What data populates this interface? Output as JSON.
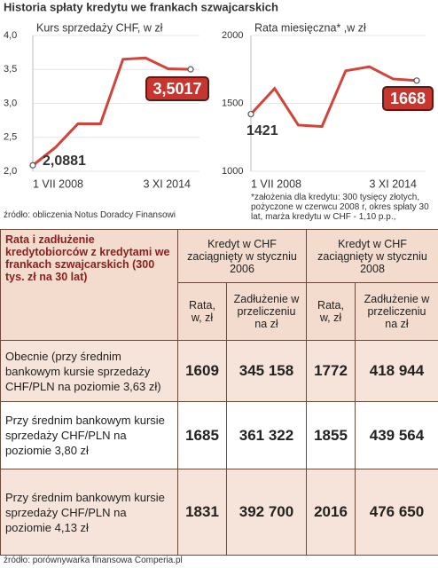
{
  "title": "Historia spłaty kredytu we frankach szwajcarskich",
  "chart_data": [
    {
      "type": "line",
      "title": "Kurs sprzedaży CHF, w zł",
      "categories": [
        "1 VII 2008",
        null,
        null,
        null,
        null,
        null,
        null,
        "3 XI 2014"
      ],
      "series": [
        {
          "name": "Kurs sprzedaży CHF",
          "color": "#d2433a",
          "values": [
            2.0881,
            2.35,
            2.7,
            2.7,
            3.65,
            3.67,
            3.51,
            3.5017
          ],
          "value_labels": [
            "2,0881",
            null,
            null,
            null,
            null,
            null,
            null,
            "3,5017"
          ]
        }
      ],
      "ylim": [
        2.0,
        4.0
      ],
      "yticks": [
        {
          "value": 2.0,
          "label": "2,0"
        },
        {
          "value": 2.5,
          "label": "2,5"
        },
        {
          "value": 3.0,
          "label": "3,0"
        },
        {
          "value": 3.5,
          "label": "3,5"
        },
        {
          "value": 4.0,
          "label": "4,0"
        }
      ]
    },
    {
      "type": "line",
      "title": "Rata miesięczna* ,w zł",
      "categories": [
        "1 VII 2008",
        null,
        null,
        null,
        null,
        null,
        null,
        "3 XI 2014"
      ],
      "series": [
        {
          "name": "Rata miesięczna",
          "color": "#d2433a",
          "values": [
            1421,
            1610,
            1340,
            1330,
            1740,
            1770,
            1680,
            1668
          ]
        }
      ],
      "ylim": [
        1000,
        2000
      ],
      "yticks": [
        1000,
        1500,
        2000
      ]
    }
  ],
  "footnote": "*założenia dla kredytu: 300 tysięcy złotych, pożyczone w czerwcu 2008 r, okres spłaty 30 lat,   marża kredytu w CHF - 1,10 p.p.,",
  "source_charts": "źródło: obliczenia Notus Doradcy Finansowi",
  "table": {
    "corner": "Rata i zadłużenie kredytobiorców z kredytami we frankach szwajcarskich (300 tys. zł na 30 lat)",
    "groups": [
      "Kredyt w CHF zaciągnięty w styczniu 2006",
      "Kredyt w CHF zaciągnięty w styczniu 2008"
    ],
    "columns": [
      "Rata, w, zł",
      "Zadłużenie w przeliczeniu na zł",
      "Rata, w, zł",
      "Zadłużenie w przeliczeniu na zł"
    ],
    "rows": [
      [
        "Obecnie (przy średnim bankowym kursie sprzedaży CHF/PLN na poziomie 3,63 zł)",
        "1609",
        "345 158",
        "1772",
        "418 944"
      ],
      [
        "Przy średnim bankowym kursie sprzedaży CHF/PLN na poziomie 3,80 zł",
        "1685",
        "361 322",
        "1855",
        "439 564"
      ],
      [
        "Przy średnim bankowym kursie sprzedaży CHF/PLN na poziomie 4,13 zł",
        "1831",
        "392 700",
        "2016",
        "476 650"
      ]
    ]
  },
  "source_table": "źródło: porównywarka finansowa Comperia.pl"
}
